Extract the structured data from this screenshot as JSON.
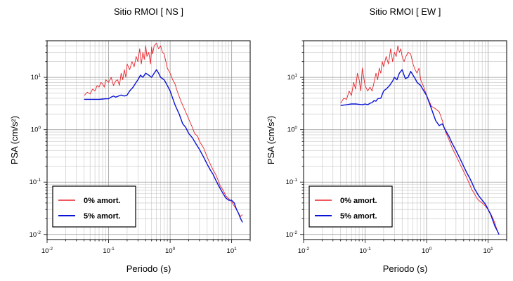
{
  "chart_data": [
    {
      "type": "line",
      "title": "Sitio RMOI [ NS ]",
      "xlabel": "Periodo (s)",
      "ylabel": "PSA (cm/s²)",
      "xscale": "log",
      "yscale": "log",
      "xlim": [
        0.01,
        20
      ],
      "ylim": [
        0.008,
        50
      ],
      "x_ticks": [
        {
          "base": "10",
          "exp": "-2",
          "value": 0.01
        },
        {
          "base": "10",
          "exp": "-1",
          "value": 0.1
        },
        {
          "base": "10",
          "exp": "0",
          "value": 1
        },
        {
          "base": "10",
          "exp": "1",
          "value": 10
        }
      ],
      "y_ticks": [
        {
          "base": "10",
          "exp": "-2",
          "value": 0.01
        },
        {
          "base": "10",
          "exp": "-1",
          "value": 0.1
        },
        {
          "base": "10",
          "exp": "0",
          "value": 1
        },
        {
          "base": "10",
          "exp": "1",
          "value": 10
        }
      ],
      "grid": true,
      "legend_position": "bottom-left",
      "series": [
        {
          "name": "0% amort.",
          "color": "#e8222a",
          "x": [
            0.04,
            0.045,
            0.05,
            0.055,
            0.06,
            0.065,
            0.07,
            0.075,
            0.08,
            0.085,
            0.09,
            0.1,
            0.11,
            0.12,
            0.13,
            0.14,
            0.15,
            0.16,
            0.17,
            0.18,
            0.19,
            0.2,
            0.22,
            0.24,
            0.26,
            0.28,
            0.3,
            0.32,
            0.34,
            0.36,
            0.38,
            0.4,
            0.42,
            0.45,
            0.48,
            0.5,
            0.52,
            0.55,
            0.6,
            0.65,
            0.7,
            0.75,
            0.8,
            0.9,
            1.0,
            1.1,
            1.2,
            1.3,
            1.5,
            1.7,
            2.0,
            2.3,
            2.5,
            2.8,
            3.0,
            3.5,
            4.0,
            4.5,
            5.0,
            5.5,
            6.0,
            6.5,
            7.0,
            7.5,
            8.0,
            9.0,
            10.0,
            11.0,
            12.0,
            13.0,
            14.0,
            15.0
          ],
          "y": [
            4.5,
            5.2,
            4.8,
            6,
            5.5,
            7,
            6.5,
            8,
            7.5,
            6.5,
            9,
            8,
            10,
            7,
            8.5,
            9,
            7,
            12,
            9,
            14,
            10,
            18,
            14,
            20,
            16,
            25,
            20,
            35,
            18,
            30,
            22,
            40,
            25,
            30,
            18,
            38,
            28,
            40,
            45,
            35,
            40,
            30,
            28,
            15,
            12,
            9,
            7.5,
            5.5,
            3.5,
            2.5,
            1.6,
            1.1,
            0.85,
            0.75,
            0.6,
            0.45,
            0.3,
            0.22,
            0.17,
            0.14,
            0.11,
            0.085,
            0.075,
            0.065,
            0.055,
            0.048,
            0.042,
            0.035,
            0.03,
            0.025,
            0.022,
            0.024
          ]
        },
        {
          "name": "5% amort.",
          "color": "#0a12d6",
          "x": [
            0.04,
            0.05,
            0.06,
            0.07,
            0.08,
            0.09,
            0.1,
            0.11,
            0.12,
            0.13,
            0.14,
            0.15,
            0.16,
            0.18,
            0.2,
            0.22,
            0.25,
            0.28,
            0.3,
            0.33,
            0.36,
            0.4,
            0.45,
            0.5,
            0.55,
            0.6,
            0.65,
            0.7,
            0.8,
            0.9,
            1.0,
            1.1,
            1.2,
            1.4,
            1.6,
            1.8,
            2.0,
            2.3,
            2.6,
            3.0,
            3.5,
            4.0,
            4.5,
            5.0,
            5.5,
            6.0,
            7.0,
            8.0,
            9.0,
            10.0,
            11.0,
            12.0,
            13.0,
            14.0,
            15.0
          ],
          "y": [
            3.8,
            3.8,
            3.8,
            3.8,
            3.85,
            3.9,
            3.9,
            4.2,
            4.4,
            4.2,
            4.3,
            4.5,
            4.6,
            4.4,
            4.6,
            5.5,
            6.5,
            8,
            9,
            11,
            10,
            12,
            11,
            10,
            12,
            14,
            12,
            10,
            9,
            7,
            5.5,
            4.0,
            3.0,
            2.0,
            1.3,
            1.1,
            0.85,
            0.7,
            0.55,
            0.42,
            0.3,
            0.22,
            0.17,
            0.14,
            0.11,
            0.09,
            0.065,
            0.05,
            0.045,
            0.045,
            0.04,
            0.03,
            0.025,
            0.02,
            0.017
          ]
        }
      ]
    },
    {
      "type": "line",
      "title": "Sitio RMOI [ EW ]",
      "xlabel": "Periodo (s)",
      "ylabel": "PSA (cm/s²)",
      "xscale": "log",
      "yscale": "log",
      "xlim": [
        0.01,
        20
      ],
      "ylim": [
        0.008,
        50
      ],
      "x_ticks": [
        {
          "base": "10",
          "exp": "-2",
          "value": 0.01
        },
        {
          "base": "10",
          "exp": "-1",
          "value": 0.1
        },
        {
          "base": "10",
          "exp": "0",
          "value": 1
        },
        {
          "base": "10",
          "exp": "1",
          "value": 10
        }
      ],
      "y_ticks": [
        {
          "base": "10",
          "exp": "-2",
          "value": 0.01
        },
        {
          "base": "10",
          "exp": "-1",
          "value": 0.1
        },
        {
          "base": "10",
          "exp": "0",
          "value": 1
        },
        {
          "base": "10",
          "exp": "1",
          "value": 10
        }
      ],
      "grid": true,
      "legend_position": "bottom-left",
      "series": [
        {
          "name": "0% amort.",
          "color": "#e8222a",
          "x": [
            0.04,
            0.045,
            0.05,
            0.055,
            0.06,
            0.065,
            0.07,
            0.075,
            0.08,
            0.085,
            0.09,
            0.1,
            0.11,
            0.12,
            0.13,
            0.14,
            0.15,
            0.16,
            0.17,
            0.18,
            0.19,
            0.2,
            0.22,
            0.24,
            0.26,
            0.28,
            0.3,
            0.32,
            0.34,
            0.36,
            0.38,
            0.4,
            0.43,
            0.46,
            0.5,
            0.55,
            0.6,
            0.65,
            0.7,
            0.75,
            0.8,
            0.9,
            1.0,
            1.1,
            1.2,
            1.4,
            1.6,
            1.8,
            2.0,
            2.3,
            2.6,
            3.0,
            3.5,
            4.0,
            4.5,
            5.0,
            5.5,
            6.0,
            6.5,
            7.0,
            8.0,
            9.0,
            10.0,
            11.0,
            12.0,
            13.0,
            14.0,
            15.0
          ],
          "y": [
            3.2,
            4.0,
            3.8,
            5.5,
            4.5,
            8,
            6,
            12,
            9,
            5.5,
            15,
            7,
            5.5,
            6.5,
            5.5,
            8,
            12,
            9,
            15,
            12,
            20,
            16,
            25,
            18,
            35,
            20,
            30,
            25,
            40,
            30,
            35,
            25,
            20,
            25,
            30,
            28,
            18,
            14,
            12,
            15,
            9,
            6.5,
            4.5,
            3.5,
            2.8,
            2.5,
            2.2,
            1.5,
            0.95,
            0.65,
            0.45,
            0.32,
            0.22,
            0.16,
            0.12,
            0.09,
            0.07,
            0.06,
            0.05,
            0.045,
            0.04,
            0.035,
            0.03,
            0.025,
            0.02,
            0.016,
            0.012,
            0.01
          ]
        },
        {
          "name": "5% amort.",
          "color": "#0a12d6",
          "x": [
            0.04,
            0.05,
            0.06,
            0.07,
            0.08,
            0.09,
            0.1,
            0.11,
            0.12,
            0.13,
            0.14,
            0.15,
            0.16,
            0.18,
            0.2,
            0.22,
            0.25,
            0.28,
            0.3,
            0.33,
            0.36,
            0.4,
            0.45,
            0.5,
            0.55,
            0.6,
            0.65,
            0.7,
            0.8,
            0.9,
            1.0,
            1.2,
            1.4,
            1.6,
            1.8,
            2.0,
            2.3,
            2.6,
            3.0,
            3.5,
            4.0,
            4.5,
            5.0,
            5.5,
            6.0,
            7.0,
            8.0,
            9.0,
            10.0,
            11.0,
            12.0,
            13.0,
            14.0,
            15.0
          ],
          "y": [
            2.9,
            3.0,
            3.1,
            3.1,
            3.05,
            3.0,
            3.1,
            3.0,
            3.2,
            3.3,
            3.6,
            3.5,
            3.9,
            4.0,
            5.5,
            6.0,
            7,
            8.5,
            10,
            9,
            12,
            14,
            9.5,
            10,
            13,
            11,
            9.5,
            8,
            7,
            5.5,
            4.5,
            2.5,
            1.5,
            1.2,
            1.3,
            1.0,
            0.75,
            0.55,
            0.4,
            0.28,
            0.2,
            0.15,
            0.12,
            0.095,
            0.075,
            0.055,
            0.045,
            0.038,
            0.03,
            0.024,
            0.018,
            0.014,
            0.012,
            0.01
          ]
        }
      ]
    }
  ]
}
